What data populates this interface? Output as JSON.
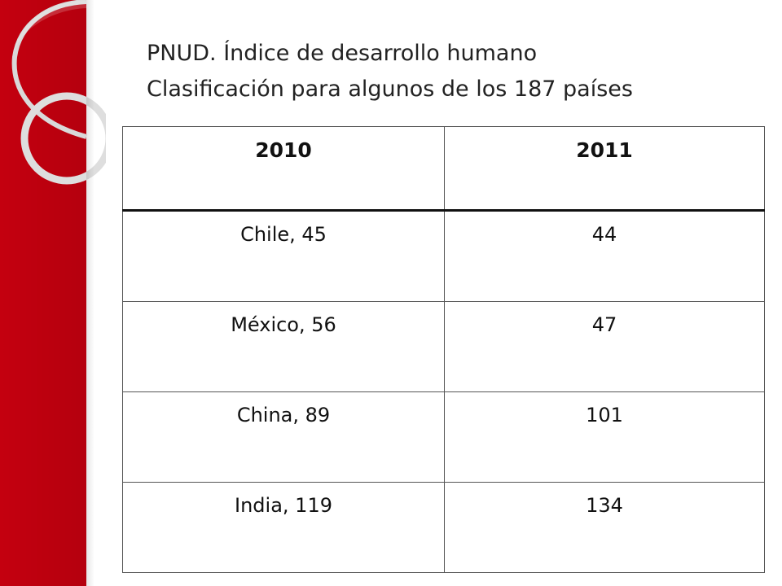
{
  "slide": {
    "title_line1": "PNUD. Índice de desarrollo humano",
    "title_line2": "Clasificación para algunos de los 187 países"
  },
  "table": {
    "headers": [
      "2010",
      "2011"
    ],
    "rows": [
      [
        "Chile, 45",
        "44"
      ],
      [
        "México, 56",
        "47"
      ],
      [
        "China, 89",
        "101"
      ],
      [
        "India, 119",
        "134"
      ]
    ]
  },
  "theme": {
    "accent": "#c4000f",
    "ring": "#dcdcdc"
  }
}
